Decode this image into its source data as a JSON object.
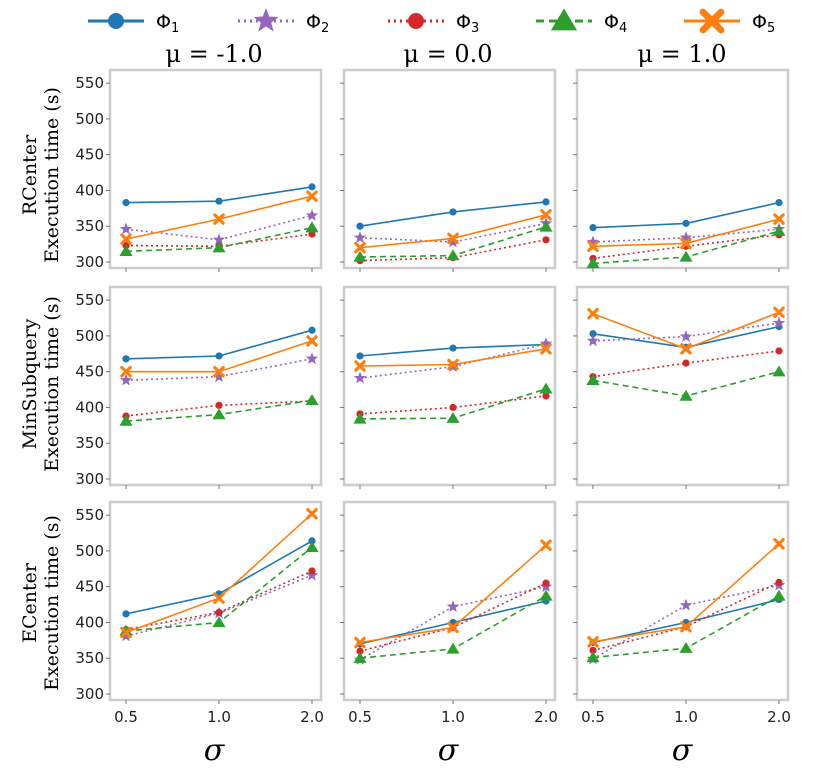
{
  "chart_data": {
    "type": "line",
    "x": [
      0.5,
      1.0,
      2.0
    ],
    "x_tick_labels": [
      "0.5",
      "1.0",
      "2.0"
    ],
    "xlabel": "σ",
    "ylim": [
      300,
      560
    ],
    "y_ticks": [
      "300",
      "350",
      "400",
      "450",
      "500",
      "550"
    ],
    "legend_position": "top",
    "legend": [
      {
        "id": "phi1",
        "label": "Φ",
        "sub": "1",
        "color": "#1f77b4",
        "marker": "circle",
        "dash": "solid"
      },
      {
        "id": "phi2",
        "label": "Φ",
        "sub": "2",
        "color": "#9467bd",
        "marker": "star",
        "dash": "dotted"
      },
      {
        "id": "phi3",
        "label": "Φ",
        "sub": "3",
        "color": "#d62728",
        "marker": "circle",
        "dash": "dotted"
      },
      {
        "id": "phi4",
        "label": "Φ",
        "sub": "4",
        "color": "#2ca02c",
        "marker": "triangle",
        "dash": "dashed"
      },
      {
        "id": "phi5",
        "label": "Φ",
        "sub": "5",
        "color": "#ff7f0e",
        "marker": "x",
        "dash": "solid"
      }
    ],
    "column_titles": [
      "μ = -1.0",
      "μ = 0.0",
      "μ = 1.0"
    ],
    "rows": [
      {
        "name": "RCenter",
        "ylabel_line1": "RCenter",
        "ylabel_line2": "Execution time (s)",
        "panels": [
          {
            "series": [
              [
                383,
                385,
                405
              ],
              [
                346,
                331,
                365
              ],
              [
                323,
                322,
                339
              ],
              [
                315,
                320,
                348
              ],
              [
                332,
                360,
                392
              ]
            ]
          },
          {
            "series": [
              [
                350,
                370,
                384
              ],
              [
                334,
                328,
                354
              ],
              [
                302,
                306,
                331
              ],
              [
                307,
                309,
                349
              ],
              [
                320,
                333,
                366
              ]
            ]
          },
          {
            "series": [
              [
                348,
                354,
                383
              ],
              [
                328,
                334,
                346
              ],
              [
                305,
                322,
                338
              ],
              [
                298,
                307,
                343
              ],
              [
                322,
                326,
                360
              ]
            ]
          }
        ]
      },
      {
        "name": "MinSubquery",
        "ylabel_line1": "MinSubquery",
        "ylabel_line2": "Execution time (s)",
        "panels": [
          {
            "series": [
              [
                468,
                472,
                508
              ],
              [
                438,
                443,
                468
              ],
              [
                388,
                403,
                409
              ],
              [
                381,
                390,
                410
              ],
              [
                450,
                450,
                493
              ]
            ]
          },
          {
            "series": [
              [
                472,
                483,
                488
              ],
              [
                441,
                457,
                489
              ],
              [
                391,
                400,
                416
              ],
              [
                384,
                385,
                426
              ],
              [
                458,
                460,
                482
              ]
            ]
          },
          {
            "series": [
              [
                503,
                484,
                513
              ],
              [
                493,
                499,
                518
              ],
              [
                443,
                462,
                479
              ],
              [
                438,
                416,
                450
              ],
              [
                531,
                482,
                533
              ]
            ]
          }
        ]
      },
      {
        "name": "ECenter",
        "ylabel_line1": "ECenter",
        "ylabel_line2": "Execution time (s)",
        "panels": [
          {
            "series": [
              [
                412,
                440,
                514
              ],
              [
                381,
                413,
                466
              ],
              [
                390,
                414,
                472
              ],
              [
                388,
                400,
                505
              ],
              [
                386,
                434,
                552
              ]
            ]
          },
          {
            "series": [
              [
                370,
                400,
                430
              ],
              [
                348,
                422,
                450
              ],
              [
                360,
                393,
                455
              ],
              [
                350,
                363,
                437
              ],
              [
                372,
                393,
                508
              ]
            ]
          },
          {
            "series": [
              [
                372,
                400,
                432
              ],
              [
                349,
                424,
                452
              ],
              [
                361,
                394,
                456
              ],
              [
                351,
                364,
                437
              ],
              [
                373,
                394,
                510
              ]
            ]
          }
        ]
      }
    ]
  }
}
